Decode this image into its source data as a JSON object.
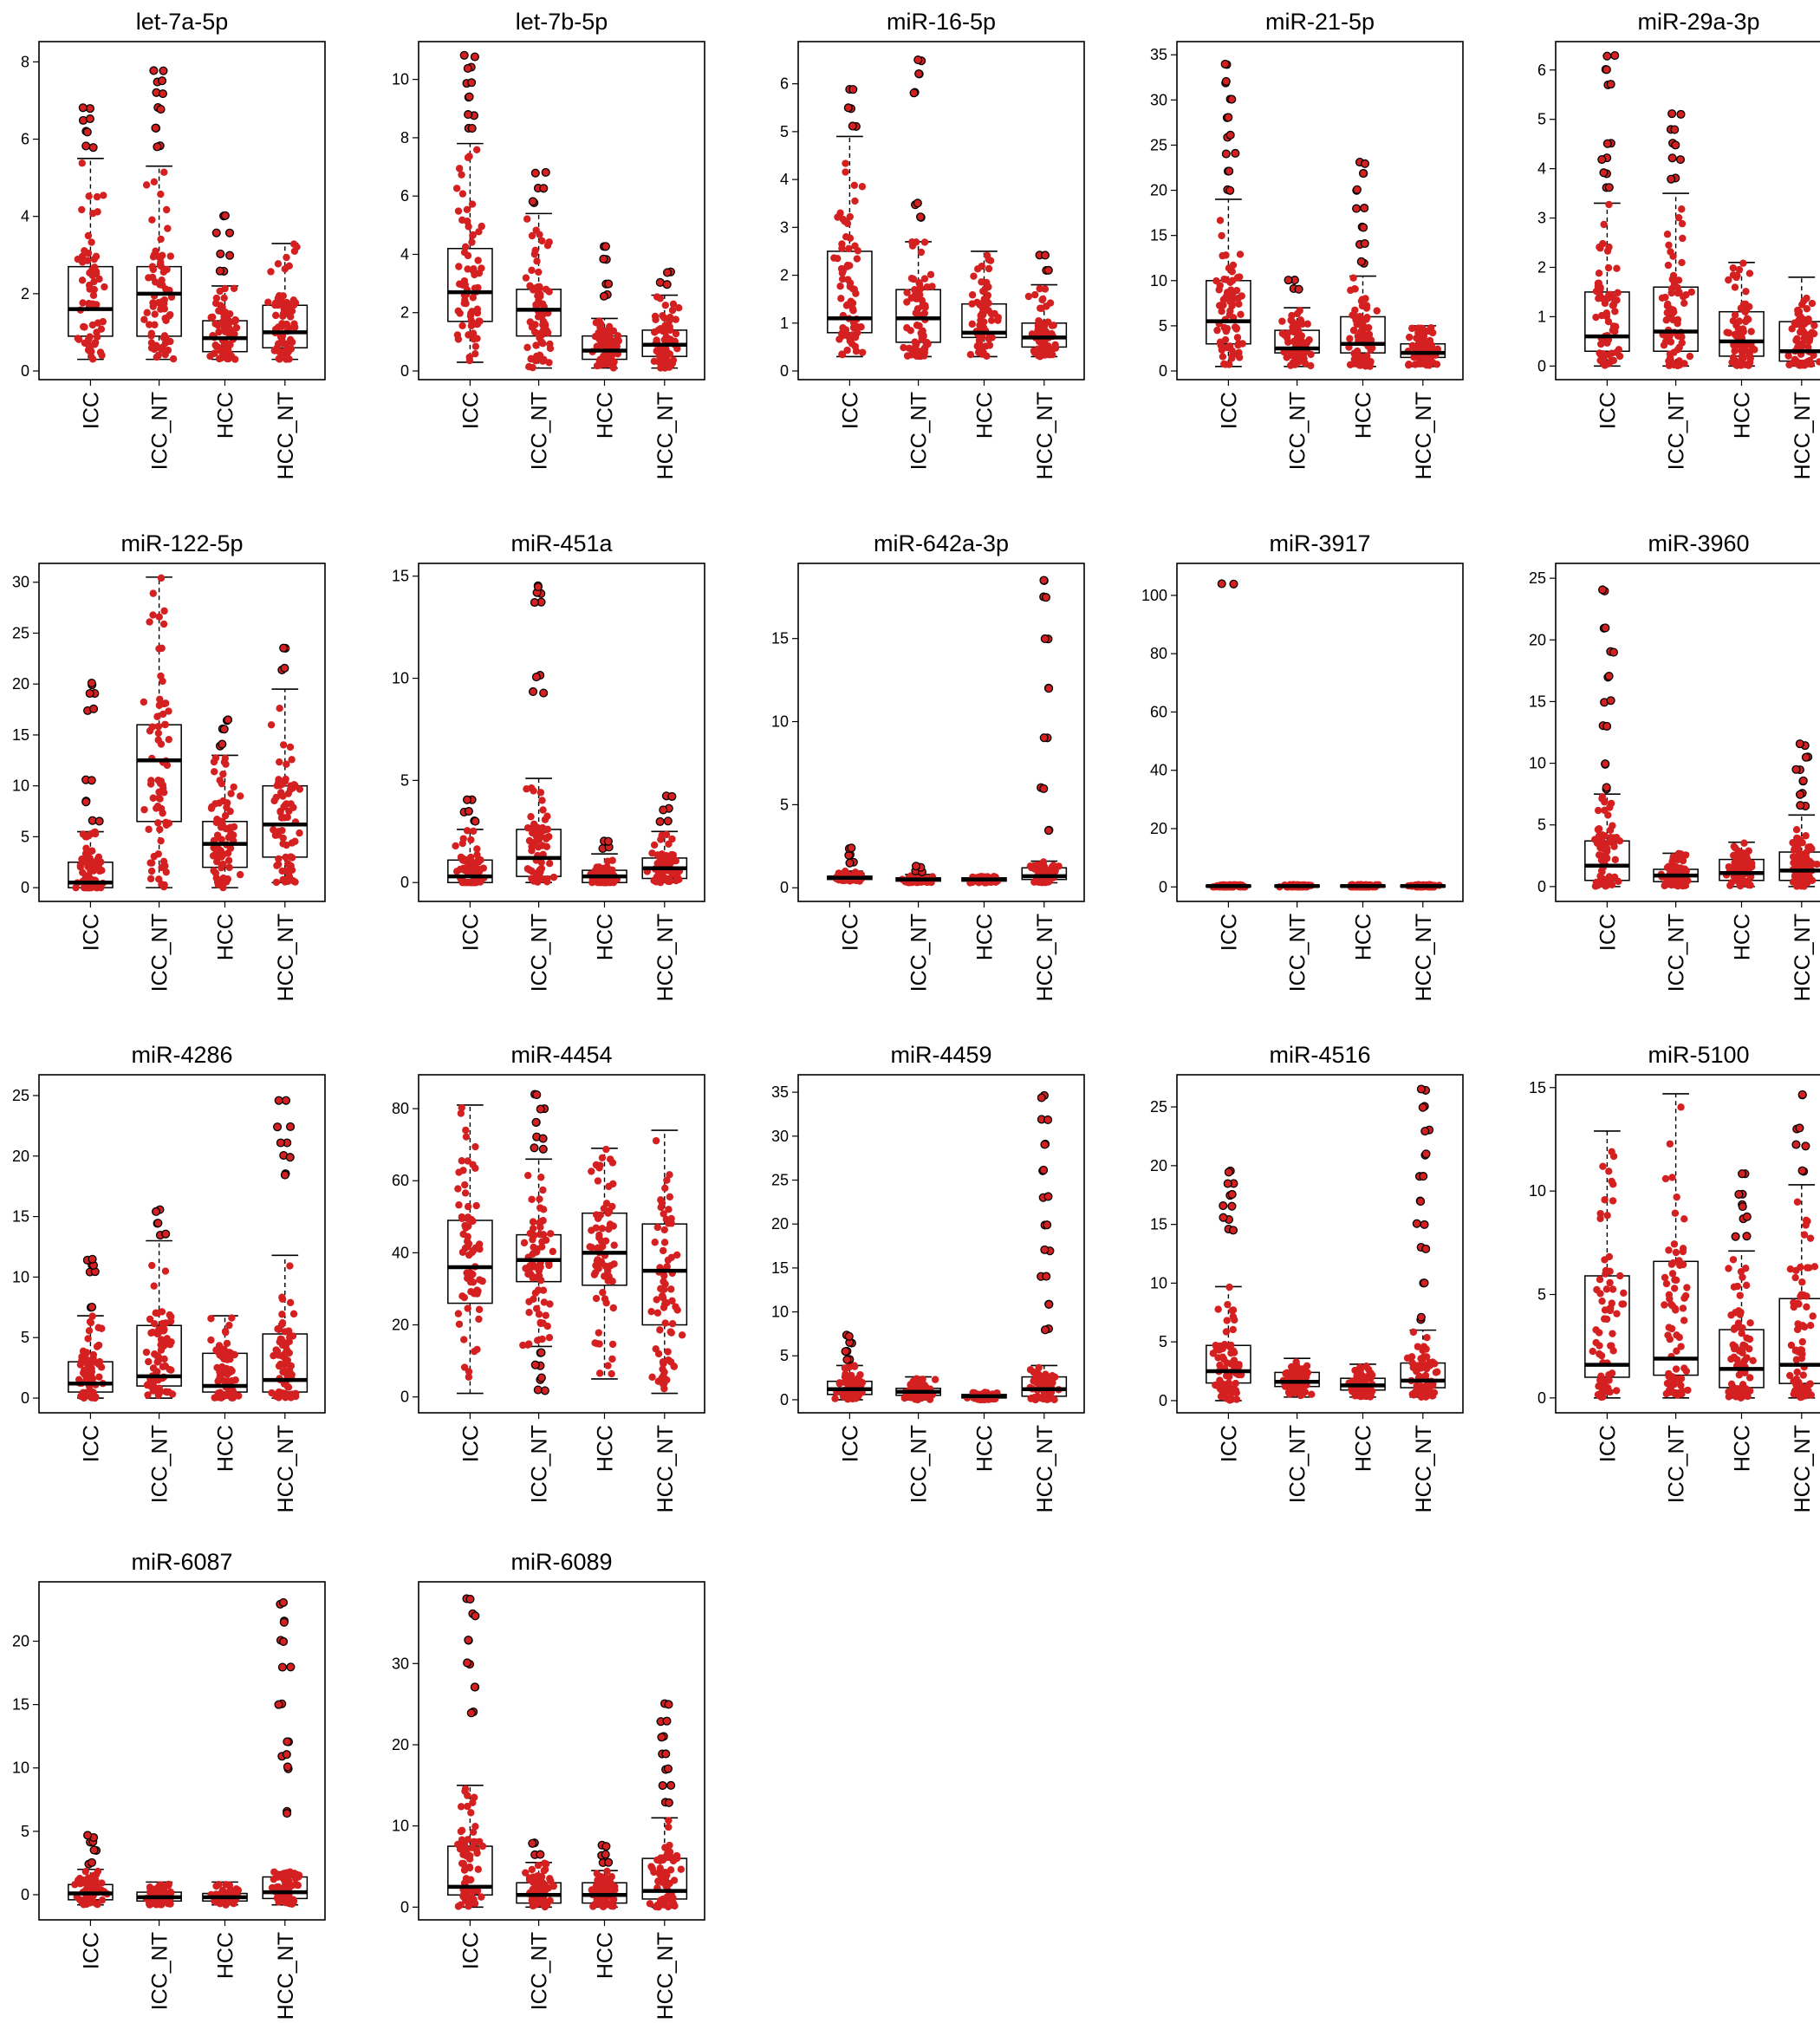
{
  "chart_data": [
    {
      "type": "box",
      "title": "let-7a-5p",
      "categories": [
        "ICC",
        "ICC_NT",
        "HCC",
        "HCC_NT"
      ],
      "yticks": [
        0,
        2,
        4,
        6,
        8
      ],
      "ylim": [
        0,
        8.3
      ],
      "boxes": [
        {
          "q1": 0.9,
          "median": 1.6,
          "q3": 2.7,
          "lo": 0.3,
          "hi": 5.5
        },
        {
          "q1": 0.9,
          "median": 2.0,
          "q3": 2.7,
          "lo": 0.3,
          "hi": 5.3
        },
        {
          "q1": 0.5,
          "median": 0.85,
          "q3": 1.3,
          "lo": 0.3,
          "hi": 2.2
        },
        {
          "q1": 0.6,
          "median": 1.0,
          "q3": 1.7,
          "lo": 0.3,
          "hi": 3.3
        }
      ],
      "outliers": [
        [
          5.8,
          6.2,
          6.5,
          6.8
        ],
        [
          5.8,
          6.3,
          6.8,
          7.2,
          7.5,
          7.8
        ],
        [
          2.6,
          3.0,
          3.6,
          4.0
        ],
        []
      ]
    },
    {
      "type": "box",
      "title": "let-7b-5p",
      "categories": [
        "ICC",
        "ICC_NT",
        "HCC",
        "HCC_NT"
      ],
      "yticks": [
        0,
        2,
        4,
        6,
        8,
        10
      ],
      "ylim": [
        0,
        11
      ],
      "boxes": [
        {
          "q1": 1.7,
          "median": 2.7,
          "q3": 4.2,
          "lo": 0.3,
          "hi": 7.8
        },
        {
          "q1": 1.2,
          "median": 2.1,
          "q3": 2.8,
          "lo": 0.1,
          "hi": 5.4
        },
        {
          "q1": 0.4,
          "median": 0.7,
          "q3": 1.2,
          "lo": 0.1,
          "hi": 1.8
        },
        {
          "q1": 0.5,
          "median": 0.9,
          "q3": 1.4,
          "lo": 0.1,
          "hi": 2.6
        }
      ],
      "outliers": [
        [
          8.3,
          8.8,
          9.4,
          9.9,
          10.4,
          10.8
        ],
        [
          5.8,
          6.3,
          6.8
        ],
        [
          2.6,
          3.0,
          3.8,
          4.3
        ],
        [
          3.0,
          3.4
        ]
      ]
    },
    {
      "type": "box",
      "title": "miR-16-5p",
      "categories": [
        "ICC",
        "ICC_NT",
        "HCC",
        "HCC_NT"
      ],
      "yticks": [
        0,
        1,
        2,
        3,
        4,
        5,
        6
      ],
      "ylim": [
        0,
        6.7
      ],
      "boxes": [
        {
          "q1": 0.8,
          "median": 1.1,
          "q3": 2.5,
          "lo": 0.3,
          "hi": 4.9
        },
        {
          "q1": 0.6,
          "median": 1.1,
          "q3": 1.7,
          "lo": 0.3,
          "hi": 2.7
        },
        {
          "q1": 0.7,
          "median": 0.8,
          "q3": 1.4,
          "lo": 0.3,
          "hi": 2.5
        },
        {
          "q1": 0.5,
          "median": 0.7,
          "q3": 1.0,
          "lo": 0.3,
          "hi": 1.8
        }
      ],
      "outliers": [
        [
          5.1,
          5.5,
          5.9
        ],
        [
          3.2,
          3.5,
          5.8,
          6.2,
          6.5
        ],
        [],
        [
          2.1,
          2.4
        ]
      ]
    },
    {
      "type": "box",
      "title": "miR-21-5p",
      "categories": [
        "ICC",
        "ICC_NT",
        "HCC",
        "HCC_NT"
      ],
      "yticks": [
        0,
        5,
        10,
        15,
        20,
        25,
        30,
        35
      ],
      "ylim": [
        0,
        35.5
      ],
      "boxes": [
        {
          "q1": 3.0,
          "median": 5.5,
          "q3": 10.0,
          "lo": 0.5,
          "hi": 19.0
        },
        {
          "q1": 2.0,
          "median": 2.5,
          "q3": 4.5,
          "lo": 0.5,
          "hi": 7.0
        },
        {
          "q1": 2.0,
          "median": 3.0,
          "q3": 6.0,
          "lo": 0.5,
          "hi": 10.5
        },
        {
          "q1": 1.5,
          "median": 2.0,
          "q3": 3.0,
          "lo": 0.5,
          "hi": 5.0
        }
      ],
      "outliers": [
        [
          20,
          22,
          24,
          26,
          28,
          30,
          32,
          34
        ],
        [
          9.0,
          10.0
        ],
        [
          12,
          14,
          16,
          18,
          20,
          22,
          23
        ],
        []
      ]
    },
    {
      "type": "box",
      "title": "miR-29a-3p",
      "categories": [
        "ICC",
        "ICC_NT",
        "HCC",
        "HCC_NT"
      ],
      "yticks": [
        0,
        1,
        2,
        3,
        4,
        5,
        6
      ],
      "ylim": [
        -0.1,
        6.4
      ],
      "boxes": [
        {
          "q1": 0.3,
          "median": 0.6,
          "q3": 1.5,
          "lo": 0.0,
          "hi": 3.3
        },
        {
          "q1": 0.3,
          "median": 0.7,
          "q3": 1.6,
          "lo": 0.0,
          "hi": 3.5
        },
        {
          "q1": 0.2,
          "median": 0.5,
          "q3": 1.1,
          "lo": 0.0,
          "hi": 2.1
        },
        {
          "q1": 0.1,
          "median": 0.3,
          "q3": 0.9,
          "lo": 0.0,
          "hi": 1.8
        }
      ],
      "outliers": [
        [
          3.6,
          3.9,
          4.2,
          4.5,
          5.7,
          6.0,
          6.3
        ],
        [
          3.8,
          4.2,
          4.5,
          4.8,
          5.1
        ],
        [],
        []
      ]
    },
    {
      "type": "box",
      "title": "miR-122-5p",
      "categories": [
        "ICC",
        "ICC_NT",
        "HCC",
        "HCC_NT"
      ],
      "yticks": [
        0,
        5,
        10,
        15,
        20,
        25,
        30
      ],
      "ylim": [
        -0.5,
        31
      ],
      "boxes": [
        {
          "q1": 0.0,
          "median": 0.5,
          "q3": 2.5,
          "lo": 0.0,
          "hi": 5.5
        },
        {
          "q1": 6.5,
          "median": 12.5,
          "q3": 16.0,
          "lo": 0.0,
          "hi": 30.5
        },
        {
          "q1": 2.0,
          "median": 4.3,
          "q3": 6.5,
          "lo": 0.0,
          "hi": 13.0
        },
        {
          "q1": 3.0,
          "median": 6.2,
          "q3": 10.0,
          "lo": 0.5,
          "hi": 19.5
        }
      ],
      "outliers": [
        [
          6.5,
          8.5,
          10.5,
          17.5,
          19.0,
          20.0
        ],
        [],
        [
          14.0,
          15.5,
          16.5
        ],
        [
          21.5,
          23.5
        ]
      ]
    },
    {
      "type": "box",
      "title": "miR-451a",
      "categories": [
        "ICC",
        "ICC_NT",
        "HCC",
        "HCC_NT"
      ],
      "yticks": [
        0,
        5,
        10,
        15
      ],
      "ylim": [
        -0.5,
        15.2
      ],
      "boxes": [
        {
          "q1": 0.0,
          "median": 0.3,
          "q3": 1.1,
          "lo": 0.0,
          "hi": 2.6
        },
        {
          "q1": 0.3,
          "median": 1.2,
          "q3": 2.6,
          "lo": 0.0,
          "hi": 5.1
        },
        {
          "q1": 0.0,
          "median": 0.3,
          "q3": 0.6,
          "lo": 0.0,
          "hi": 1.4
        },
        {
          "q1": 0.2,
          "median": 0.7,
          "q3": 1.2,
          "lo": 0.0,
          "hi": 2.5
        }
      ],
      "outliers": [
        [
          3.0,
          3.5,
          4.0
        ],
        [
          9.3,
          10.1,
          13.7,
          14.2,
          14.5
        ],
        [
          1.7,
          2.0
        ],
        [
          3.0,
          3.6,
          4.2
        ]
      ]
    },
    {
      "type": "box",
      "title": "miR-642a-3p",
      "categories": [
        "ICC",
        "ICC_NT",
        "HCC",
        "HCC_NT"
      ],
      "yticks": [
        0,
        5,
        10,
        15
      ],
      "ylim": [
        -0.3,
        19
      ],
      "boxes": [
        {
          "q1": 0.5,
          "median": 0.6,
          "q3": 0.7,
          "lo": 0.4,
          "hi": 1.0
        },
        {
          "q1": 0.4,
          "median": 0.5,
          "q3": 0.6,
          "lo": 0.3,
          "hi": 0.8
        },
        {
          "q1": 0.4,
          "median": 0.5,
          "q3": 0.6,
          "lo": 0.3,
          "hi": 0.7
        },
        {
          "q1": 0.5,
          "median": 0.7,
          "q3": 1.2,
          "lo": 0.3,
          "hi": 1.6
        }
      ],
      "outliers": [
        [
          1.5,
          2.0,
          2.4
        ],
        [
          1.0,
          1.3
        ],
        [],
        [
          3.5,
          6.0,
          9.0,
          12.0,
          15.0,
          17.5,
          18.5
        ]
      ]
    },
    {
      "type": "box",
      "title": "miR-3917",
      "categories": [
        "ICC",
        "ICC_NT",
        "HCC",
        "HCC_NT"
      ],
      "yticks": [
        0,
        20,
        40,
        60,
        80,
        100
      ],
      "ylim": [
        -2,
        108
      ],
      "boxes": [
        {
          "q1": 0.0,
          "median": 0.3,
          "q3": 0.6,
          "lo": 0.0,
          "hi": 0.8
        },
        {
          "q1": 0.0,
          "median": 0.3,
          "q3": 0.6,
          "lo": 0.0,
          "hi": 0.8
        },
        {
          "q1": 0.0,
          "median": 0.3,
          "q3": 0.6,
          "lo": 0.0,
          "hi": 0.8
        },
        {
          "q1": 0.0,
          "median": 0.3,
          "q3": 0.6,
          "lo": 0.0,
          "hi": 0.8
        }
      ],
      "outliers": [
        [
          104
        ],
        [],
        [],
        []
      ]
    },
    {
      "type": "box",
      "title": "miR-3960",
      "categories": [
        "ICC",
        "ICC_NT",
        "HCC",
        "HCC_NT"
      ],
      "yticks": [
        0,
        5,
        10,
        15,
        20,
        25
      ],
      "ylim": [
        -0.5,
        25.5
      ],
      "boxes": [
        {
          "q1": 0.5,
          "median": 1.7,
          "q3": 3.7,
          "lo": 0.0,
          "hi": 7.5
        },
        {
          "q1": 0.4,
          "median": 0.9,
          "q3": 1.4,
          "lo": 0.0,
          "hi": 2.7
        },
        {
          "q1": 0.5,
          "median": 1.1,
          "q3": 2.2,
          "lo": 0.0,
          "hi": 3.6
        },
        {
          "q1": 0.5,
          "median": 1.3,
          "q3": 2.8,
          "lo": 0.0,
          "hi": 5.8
        }
      ],
      "outliers": [
        [
          8,
          10,
          13,
          15,
          17,
          19,
          21,
          24
        ],
        [],
        [],
        [
          6.5,
          7.5,
          8.5,
          9.5,
          10.5,
          11.5
        ]
      ]
    },
    {
      "type": "box",
      "title": "miR-4286",
      "categories": [
        "ICC",
        "ICC_NT",
        "HCC",
        "HCC_NT"
      ],
      "yticks": [
        0,
        5,
        10,
        15,
        20,
        25
      ],
      "ylim": [
        -0.5,
        26
      ],
      "boxes": [
        {
          "q1": 0.5,
          "median": 1.2,
          "q3": 3.0,
          "lo": 0.0,
          "hi": 6.8
        },
        {
          "q1": 1.0,
          "median": 1.8,
          "q3": 6.0,
          "lo": 0.0,
          "hi": 13.0
        },
        {
          "q1": 0.5,
          "median": 1.0,
          "q3": 3.7,
          "lo": 0.0,
          "hi": 6.8
        },
        {
          "q1": 0.5,
          "median": 1.5,
          "q3": 5.3,
          "lo": 0.0,
          "hi": 11.8
        }
      ],
      "outliers": [
        [
          7.5,
          10.5,
          11.0,
          11.5
        ],
        [
          13.5,
          14.5,
          15.5
        ],
        [],
        [
          18.5,
          20.0,
          21.0,
          22.5,
          24.5
        ]
      ]
    },
    {
      "type": "box",
      "title": "miR-4454",
      "categories": [
        "ICC",
        "ICC_NT",
        "HCC",
        "HCC_NT"
      ],
      "yticks": [
        0,
        20,
        40,
        60,
        80
      ],
      "ylim": [
        -2,
        87
      ],
      "boxes": [
        {
          "q1": 26,
          "median": 36,
          "q3": 49,
          "lo": 1,
          "hi": 81
        },
        {
          "q1": 32,
          "median": 38,
          "q3": 45,
          "lo": 14,
          "hi": 66
        },
        {
          "q1": 31,
          "median": 40,
          "q3": 51,
          "lo": 5,
          "hi": 69
        },
        {
          "q1": 20,
          "median": 35,
          "q3": 48,
          "lo": 1,
          "hi": 74
        }
      ],
      "outliers": [
        [],
        [
          2,
          5,
          9,
          12,
          69,
          72,
          76,
          80,
          84
        ],
        [],
        []
      ]
    },
    {
      "type": "box",
      "title": "miR-4459",
      "categories": [
        "ICC",
        "ICC_NT",
        "HCC",
        "HCC_NT"
      ],
      "yticks": [
        0,
        5,
        10,
        15,
        20,
        25,
        30,
        35
      ],
      "ylim": [
        -0.5,
        36
      ],
      "boxes": [
        {
          "q1": 0.6,
          "median": 1.2,
          "q3": 2.1,
          "lo": 0.0,
          "hi": 3.9
        },
        {
          "q1": 0.5,
          "median": 0.9,
          "q3": 1.3,
          "lo": 0.0,
          "hi": 2.6
        },
        {
          "q1": 0.2,
          "median": 0.4,
          "q3": 0.6,
          "lo": 0.0,
          "hi": 0.9
        },
        {
          "q1": 0.4,
          "median": 1.2,
          "q3": 2.6,
          "lo": 0.0,
          "hi": 3.9
        }
      ],
      "outliers": [
        [
          4.5,
          5.5,
          6.5,
          7.3
        ],
        [],
        [],
        [
          8,
          11,
          14,
          17,
          20,
          23,
          26,
          29,
          32,
          34.5
        ]
      ]
    },
    {
      "type": "box",
      "title": "miR-4516",
      "categories": [
        "ICC",
        "ICC_NT",
        "HCC",
        "HCC_NT"
      ],
      "yticks": [
        0,
        5,
        10,
        15,
        20,
        25
      ],
      "ylim": [
        -0.3,
        27
      ],
      "boxes": [
        {
          "q1": 1.5,
          "median": 2.5,
          "q3": 4.7,
          "lo": 0.0,
          "hi": 9.7
        },
        {
          "q1": 1.2,
          "median": 1.6,
          "q3": 2.4,
          "lo": 0.3,
          "hi": 3.6
        },
        {
          "q1": 0.9,
          "median": 1.3,
          "q3": 1.9,
          "lo": 0.3,
          "hi": 3.1
        },
        {
          "q1": 1.1,
          "median": 1.7,
          "q3": 3.2,
          "lo": 0.3,
          "hi": 6.0
        }
      ],
      "outliers": [
        [
          14.5,
          15.5,
          16.5,
          17.5,
          18.5,
          19.5
        ],
        [],
        [],
        [
          7,
          10,
          13,
          15,
          17,
          19,
          21,
          23,
          25,
          26.5
        ]
      ]
    },
    {
      "type": "box",
      "title": "miR-5100",
      "categories": [
        "ICC",
        "ICC_NT",
        "HCC",
        "HCC_NT"
      ],
      "yticks": [
        0,
        5,
        10,
        15
      ],
      "ylim": [
        -0.3,
        15.2
      ],
      "boxes": [
        {
          "q1": 1.0,
          "median": 1.6,
          "q3": 5.9,
          "lo": 0.0,
          "hi": 12.9
        },
        {
          "q1": 1.1,
          "median": 1.9,
          "q3": 6.6,
          "lo": 0.0,
          "hi": 14.7
        },
        {
          "q1": 0.5,
          "median": 1.4,
          "q3": 3.3,
          "lo": 0.0,
          "hi": 7.1
        },
        {
          "q1": 0.7,
          "median": 1.6,
          "q3": 4.8,
          "lo": 0.0,
          "hi": 10.3
        }
      ],
      "outliers": [
        [],
        [],
        [
          7.8,
          8.7,
          9.3,
          9.9,
          10.8
        ],
        [
          11.0,
          12.2,
          13.0,
          14.7
        ]
      ]
    },
    {
      "type": "box",
      "title": "miR-6087",
      "categories": [
        "ICC",
        "ICC_NT",
        "HCC",
        "HCC_NT"
      ],
      "yticks": [
        0,
        5,
        10,
        15,
        20
      ],
      "ylim": [
        -1.3,
        24
      ],
      "boxes": [
        {
          "q1": -0.4,
          "median": 0.1,
          "q3": 0.8,
          "lo": -0.8,
          "hi": 2.0
        },
        {
          "q1": -0.5,
          "median": -0.2,
          "q3": 0.2,
          "lo": -0.8,
          "hi": 1.0
        },
        {
          "q1": -0.5,
          "median": -0.2,
          "q3": 0.1,
          "lo": -0.8,
          "hi": 1.0
        },
        {
          "q1": -0.3,
          "median": 0.2,
          "q3": 1.4,
          "lo": -0.8,
          "hi": 1.8
        }
      ],
      "outliers": [
        [
          2.5,
          3.5,
          4.2,
          4.6
        ],
        [],
        [],
        [
          6.5,
          10,
          11,
          12,
          15,
          18,
          20,
          21.5,
          23
        ]
      ]
    },
    {
      "type": "box",
      "title": "miR-6089",
      "categories": [
        "ICC",
        "ICC_NT",
        "HCC",
        "HCC_NT"
      ],
      "yticks": [
        0,
        10,
        20,
        30
      ],
      "ylim": [
        -0.5,
        39
      ],
      "boxes": [
        {
          "q1": 1.5,
          "median": 2.5,
          "q3": 7.5,
          "lo": 0.0,
          "hi": 15.0
        },
        {
          "q1": 0.5,
          "median": 1.5,
          "q3": 3.0,
          "lo": 0.0,
          "hi": 5.5
        },
        {
          "q1": 0.5,
          "median": 1.5,
          "q3": 3.0,
          "lo": 0.0,
          "hi": 4.5
        },
        {
          "q1": 1.0,
          "median": 2.0,
          "q3": 6.0,
          "lo": 0.0,
          "hi": 11.0
        }
      ],
      "outliers": [
        [
          24,
          27,
          30,
          33,
          36,
          38
        ],
        [
          6.5,
          8.0
        ],
        [
          5.5,
          6.5,
          7.5
        ],
        [
          13,
          15,
          17,
          19,
          21,
          23,
          25
        ]
      ]
    }
  ],
  "colors": {
    "points": "#d42020",
    "outline": "#000000",
    "box_fill": "#ffffff"
  }
}
